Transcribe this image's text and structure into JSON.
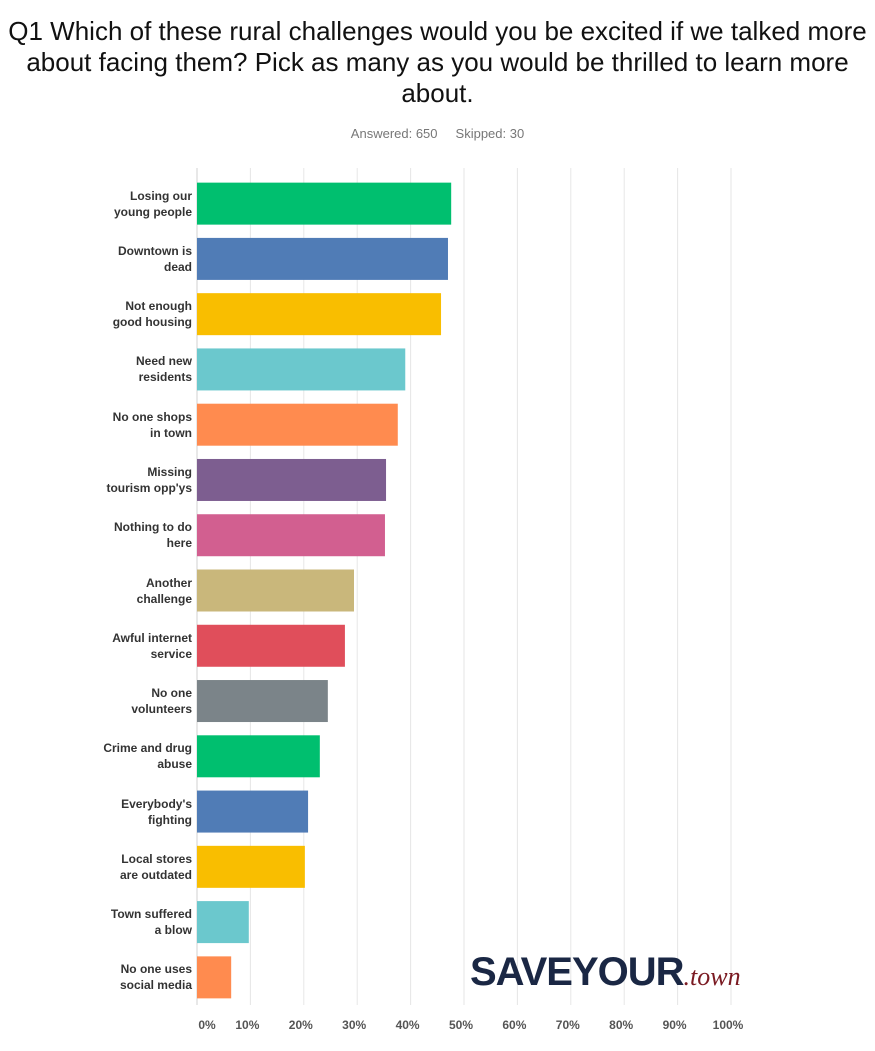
{
  "chart_data": {
    "type": "bar",
    "orientation": "horizontal",
    "title": "Q1 Which of these rural challenges would you be excited if we talked more about facing them? Pick as many as you would be thrilled to learn more about.",
    "answered": "Answered: 650",
    "skipped": "Skipped: 30",
    "categories": [
      "Losing our\nyoung people",
      "Downtown is\ndead",
      "Not enough\ngood housing",
      "Need new\nresidents",
      "No one shops\nin town",
      "Missing\ntourism opp'ys",
      "Nothing to do\nhere",
      "Another\nchallenge",
      "Awful internet\nservice",
      "No one\nvolunteers",
      "Crime and drug\nabuse",
      "Everybody's\nfighting",
      "Local stores\nare outdated",
      "Town suffered\na blow",
      "No one uses\nsocial media"
    ],
    "values": [
      47.6,
      47.0,
      45.7,
      39.0,
      37.6,
      35.4,
      35.2,
      29.4,
      27.7,
      24.5,
      23.0,
      20.8,
      20.2,
      9.7,
      6.4
    ],
    "colors": [
      "#00bf6f",
      "#507cb6",
      "#f9be00",
      "#6bc8cd",
      "#ff8b4f",
      "#7d5e90",
      "#d25f90",
      "#c9b77b",
      "#e04e5b",
      "#7b8489",
      "#00bf6f",
      "#507cb6",
      "#f9be00",
      "#6bc8cd",
      "#ff8b4f"
    ],
    "xlim": [
      0,
      100
    ],
    "xticks": [
      {
        "value": 0,
        "label": "0%"
      },
      {
        "value": 10,
        "label": "10%"
      },
      {
        "value": 20,
        "label": "20%"
      },
      {
        "value": 30,
        "label": "30%"
      },
      {
        "value": 40,
        "label": "40%"
      },
      {
        "value": 50,
        "label": "50%"
      },
      {
        "value": 60,
        "label": "60%"
      },
      {
        "value": 70,
        "label": "70%"
      },
      {
        "value": 80,
        "label": "80%"
      },
      {
        "value": 90,
        "label": "90%"
      },
      {
        "value": 100,
        "label": "100%"
      }
    ],
    "grid": true
  },
  "logo": {
    "main": "SAVEYOUR",
    "suffix": ".town"
  }
}
